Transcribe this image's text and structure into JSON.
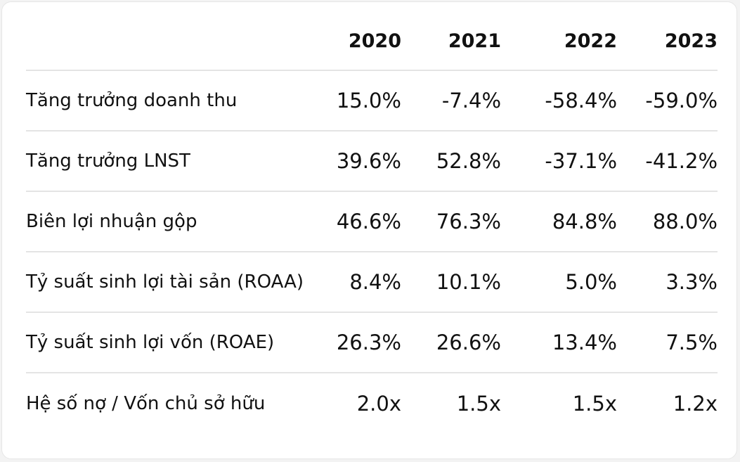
{
  "table": {
    "columns": [
      "2020",
      "2021",
      "2022",
      "2023"
    ],
    "rows": [
      {
        "label": "Tăng trưởng doanh thu",
        "values": [
          "15.0%",
          "-7.4%",
          "-58.4%",
          "-59.0%"
        ]
      },
      {
        "label": "Tăng trưởng LNST",
        "values": [
          "39.6%",
          "52.8%",
          "-37.1%",
          "-41.2%"
        ]
      },
      {
        "label": "Biên lợi nhuận gộp",
        "values": [
          "46.6%",
          "76.3%",
          "84.8%",
          "88.0%"
        ]
      },
      {
        "label": "Tỷ suất sinh lợi tài sản (ROAA)",
        "values": [
          "8.4%",
          "10.1%",
          "5.0%",
          "3.3%"
        ]
      },
      {
        "label": "Tỷ suất sinh lợi vốn (ROAE)",
        "values": [
          "26.3%",
          "26.6%",
          "13.4%",
          "7.5%"
        ]
      },
      {
        "label": "Hệ số nợ / Vốn chủ sở hữu",
        "values": [
          "2.0x",
          "1.5x",
          "1.5x",
          "1.2x"
        ]
      }
    ]
  }
}
